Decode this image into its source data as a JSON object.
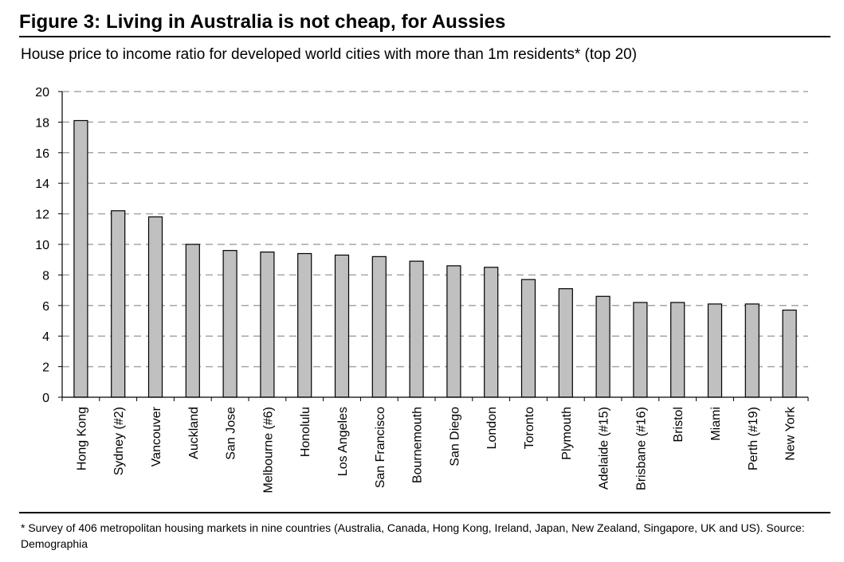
{
  "header": {
    "title": "Figure 3: Living in Australia is not cheap, for Aussies",
    "subtitle": "House price to income ratio for developed world cities with more than 1m residents* (top 20)"
  },
  "footer": {
    "footnote": "* Survey of 406 metropolitan housing markets in nine countries (Australia, Canada, Hong Kong, Ireland, Japan, New Zealand, Singapore, UK and US). Source: Demographia"
  },
  "chart_data": {
    "type": "bar",
    "title": "Figure 3: Living in Australia is not cheap, for Aussies",
    "subtitle": "House price to income ratio for developed world cities with more than 1m residents* (top 20)",
    "xlabel": "",
    "ylabel": "",
    "ylim": [
      0,
      20
    ],
    "yticks": [
      "0",
      "2",
      "4",
      "6",
      "8",
      "10",
      "12",
      "14",
      "16",
      "18",
      "20"
    ],
    "grid": "horizontal-dashed",
    "legend": "none",
    "bar_color": "#c0c0c0",
    "categories": [
      "Hong Kong",
      "Sydney (#2)",
      "Vancouver",
      "Auckland",
      "San Jose",
      "Melbourne (#6)",
      "Honolulu",
      "Los Angeles",
      "San Francisco",
      "Bournemouth",
      "San Diego",
      "London",
      "Toronto",
      "Plymouth",
      "Adelaide (#15)",
      "Brisbane (#16)",
      "Bristol",
      "Miami",
      "Perth (#19)",
      "New York"
    ],
    "values": [
      18.1,
      12.2,
      11.8,
      10.0,
      9.6,
      9.5,
      9.4,
      9.3,
      9.2,
      8.9,
      8.6,
      8.5,
      7.7,
      7.1,
      6.6,
      6.2,
      6.2,
      6.1,
      6.1,
      5.7
    ]
  }
}
